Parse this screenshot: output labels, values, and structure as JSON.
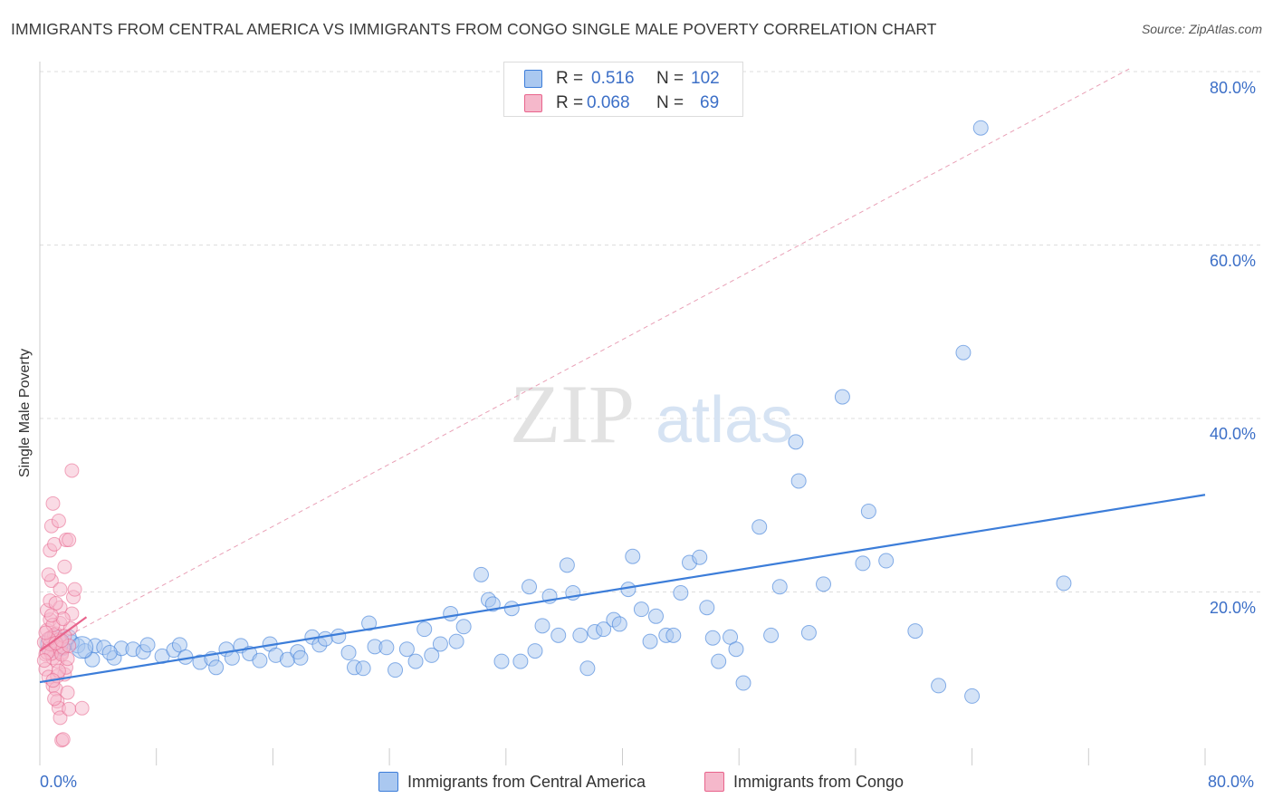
{
  "header": {
    "title": "IMMIGRANTS FROM CENTRAL AMERICA VS IMMIGRANTS FROM CONGO SINGLE MALE POVERTY CORRELATION CHART",
    "source": "Source: ZipAtlas.com"
  },
  "watermark": {
    "zip": "ZIP",
    "atlas": "atlas"
  },
  "legend_top": {
    "rows": [
      {
        "r_label": "R =",
        "r_value": "0.516",
        "n_label": "N =",
        "n_value": "102",
        "color": "#aac8f0"
      },
      {
        "r_label": "R =",
        "r_value": "0.068",
        "n_label": "N =",
        "n_value": "69",
        "color": "#f5b8cb"
      }
    ]
  },
  "legend_bottom": {
    "items": [
      {
        "label": "Immigrants from Central America",
        "color": "#aac8f0"
      },
      {
        "label": "Immigrants from Congo",
        "color": "#f5b8cb"
      }
    ]
  },
  "colors": {
    "blue": "#3c7dd9",
    "blue_fill": "#aac8f0",
    "pink": "#e8648c",
    "pink_fill": "#f5b8cb",
    "axis_text": "#3c6fc7",
    "grid": "#dddddd"
  },
  "chart_data": {
    "type": "scatter",
    "title": "IMMIGRANTS FROM CENTRAL AMERICA VS IMMIGRANTS FROM CONGO SINGLE MALE POVERTY CORRELATION CHART",
    "xlabel": "",
    "ylabel": "Single Male Poverty",
    "xlim": [
      0,
      80
    ],
    "ylim": [
      0,
      80
    ],
    "x_tick_labels": [
      "0.0%",
      "80.0%"
    ],
    "y_ticks": [
      20,
      40,
      60,
      80
    ],
    "y_tick_labels": [
      "20.0%",
      "40.0%",
      "60.0%",
      "80.0%"
    ],
    "grid": true,
    "series": [
      {
        "name": "Immigrants from Central America",
        "R": 0.516,
        "N": 102,
        "trend": {
          "x": [
            0,
            80
          ],
          "y": [
            9.6,
            31.2
          ]
        },
        "points": [
          [
            2.6,
            13.8
          ],
          [
            3.1,
            13.2
          ],
          [
            3.8,
            13.8
          ],
          [
            2.2,
            14.2
          ],
          [
            3.6,
            12.2
          ],
          [
            4.4,
            13.6
          ],
          [
            5.1,
            12.4
          ],
          [
            5.6,
            13.5
          ],
          [
            6.4,
            13.4
          ],
          [
            7.1,
            13.1
          ],
          [
            7.4,
            13.9
          ],
          [
            8.4,
            12.6
          ],
          [
            9.2,
            13.3
          ],
          [
            9.6,
            13.9
          ],
          [
            10.0,
            12.5
          ],
          [
            11.0,
            11.9
          ],
          [
            11.8,
            12.3
          ],
          [
            12.1,
            11.3
          ],
          [
            12.8,
            13.4
          ],
          [
            13.2,
            12.4
          ],
          [
            13.8,
            13.8
          ],
          [
            14.4,
            12.9
          ],
          [
            15.1,
            12.1
          ],
          [
            15.8,
            14.0
          ],
          [
            16.2,
            12.7
          ],
          [
            17.0,
            12.2
          ],
          [
            17.7,
            13.1
          ],
          [
            17.9,
            12.4
          ],
          [
            18.7,
            14.8
          ],
          [
            19.2,
            13.9
          ],
          [
            19.6,
            14.6
          ],
          [
            20.5,
            14.9
          ],
          [
            21.2,
            13.0
          ],
          [
            21.6,
            11.3
          ],
          [
            22.2,
            11.2
          ],
          [
            22.6,
            16.4
          ],
          [
            23.0,
            13.7
          ],
          [
            23.8,
            13.6
          ],
          [
            24.4,
            11.0
          ],
          [
            25.2,
            13.4
          ],
          [
            25.8,
            12.0
          ],
          [
            26.4,
            15.7
          ],
          [
            26.9,
            12.7
          ],
          [
            27.5,
            14.0
          ],
          [
            28.2,
            17.5
          ],
          [
            28.6,
            14.3
          ],
          [
            29.1,
            16.0
          ],
          [
            30.3,
            22.0
          ],
          [
            30.8,
            19.1
          ],
          [
            31.1,
            18.6
          ],
          [
            31.7,
            12.0
          ],
          [
            32.4,
            18.1
          ],
          [
            33.0,
            12.0
          ],
          [
            33.6,
            20.6
          ],
          [
            34.0,
            13.2
          ],
          [
            34.5,
            16.1
          ],
          [
            35.0,
            19.5
          ],
          [
            35.6,
            15.0
          ],
          [
            36.2,
            23.1
          ],
          [
            36.6,
            19.9
          ],
          [
            37.1,
            15.0
          ],
          [
            37.6,
            11.2
          ],
          [
            38.1,
            15.4
          ],
          [
            38.7,
            15.7
          ],
          [
            39.4,
            16.8
          ],
          [
            39.8,
            16.3
          ],
          [
            40.4,
            20.3
          ],
          [
            40.7,
            24.1
          ],
          [
            41.3,
            18.0
          ],
          [
            41.9,
            14.3
          ],
          [
            42.3,
            17.2
          ],
          [
            43.0,
            15.0
          ],
          [
            43.5,
            15.0
          ],
          [
            44.0,
            19.9
          ],
          [
            44.6,
            23.4
          ],
          [
            45.3,
            24.0
          ],
          [
            45.8,
            18.2
          ],
          [
            46.2,
            14.7
          ],
          [
            46.6,
            12.0
          ],
          [
            47.4,
            14.8
          ],
          [
            47.8,
            13.4
          ],
          [
            48.3,
            9.5
          ],
          [
            49.4,
            27.5
          ],
          [
            50.2,
            15.0
          ],
          [
            50.8,
            20.6
          ],
          [
            51.9,
            37.3
          ],
          [
            52.1,
            32.8
          ],
          [
            52.8,
            15.3
          ],
          [
            53.8,
            20.9
          ],
          [
            55.1,
            42.5
          ],
          [
            56.5,
            23.3
          ],
          [
            56.9,
            29.3
          ],
          [
            58.1,
            23.6
          ],
          [
            60.1,
            15.5
          ],
          [
            61.7,
            9.2
          ],
          [
            63.4,
            47.6
          ],
          [
            64.0,
            8.0
          ],
          [
            64.6,
            73.5
          ],
          [
            70.3,
            21.0
          ],
          [
            1.6,
            13.5
          ],
          [
            2.0,
            14.8
          ],
          [
            4.8,
            13.0
          ]
        ]
      },
      {
        "name": "Immigrants from Congo",
        "R": 0.068,
        "N": 69,
        "trend": {
          "x": [
            0,
            3.2
          ],
          "y": [
            13.2,
            17.1
          ]
        },
        "trend_dashed": {
          "x": [
            0,
            75
          ],
          "y": [
            13.2,
            80.5
          ]
        },
        "points": [
          [
            0.3,
            14.2
          ],
          [
            0.4,
            12.8
          ],
          [
            0.5,
            15.6
          ],
          [
            0.6,
            13.4
          ],
          [
            0.4,
            11.1
          ],
          [
            0.7,
            16.8
          ],
          [
            0.8,
            14.8
          ],
          [
            0.9,
            12.4
          ],
          [
            1.0,
            13.9
          ],
          [
            1.1,
            15.2
          ],
          [
            0.5,
            17.9
          ],
          [
            0.6,
            10.2
          ],
          [
            0.7,
            19.0
          ],
          [
            0.8,
            21.3
          ],
          [
            0.9,
            9.2
          ],
          [
            1.2,
            12.0
          ],
          [
            1.3,
            14.5
          ],
          [
            1.4,
            16.4
          ],
          [
            1.5,
            13.0
          ],
          [
            0.6,
            22.0
          ],
          [
            0.7,
            24.8
          ],
          [
            0.8,
            27.6
          ],
          [
            0.9,
            30.2
          ],
          [
            1.0,
            25.5
          ],
          [
            1.1,
            8.8
          ],
          [
            1.2,
            7.4
          ],
          [
            1.3,
            6.6
          ],
          [
            1.4,
            5.5
          ],
          [
            1.5,
            2.9
          ],
          [
            1.6,
            3.0
          ],
          [
            1.7,
            10.5
          ],
          [
            1.8,
            11.3
          ],
          [
            1.9,
            8.4
          ],
          [
            2.0,
            6.5
          ],
          [
            2.1,
            15.8
          ],
          [
            2.2,
            17.5
          ],
          [
            2.3,
            19.4
          ],
          [
            2.4,
            20.3
          ],
          [
            1.3,
            28.2
          ],
          [
            1.8,
            26.0
          ],
          [
            2.0,
            26.0
          ],
          [
            2.2,
            34.0
          ],
          [
            1.2,
            13.7
          ],
          [
            1.0,
            15.0
          ],
          [
            0.9,
            16.2
          ],
          [
            0.8,
            12.9
          ],
          [
            0.7,
            14.0
          ],
          [
            1.5,
            12.8
          ],
          [
            1.6,
            13.6
          ],
          [
            1.7,
            14.9
          ],
          [
            1.4,
            18.2
          ],
          [
            1.1,
            18.7
          ],
          [
            0.5,
            13.0
          ],
          [
            0.6,
            14.6
          ],
          [
            0.4,
            15.3
          ],
          [
            0.3,
            12.1
          ],
          [
            1.9,
            12.3
          ],
          [
            2.0,
            13.8
          ],
          [
            1.6,
            16.9
          ],
          [
            1.2,
            10.3
          ],
          [
            1.3,
            10.9
          ],
          [
            1.0,
            7.7
          ],
          [
            2.9,
            6.6
          ],
          [
            1.4,
            20.3
          ],
          [
            0.9,
            9.8
          ],
          [
            1.7,
            22.9
          ],
          [
            0.8,
            17.3
          ],
          [
            1.1,
            14.1
          ],
          [
            1.5,
            14.4
          ]
        ]
      }
    ]
  }
}
